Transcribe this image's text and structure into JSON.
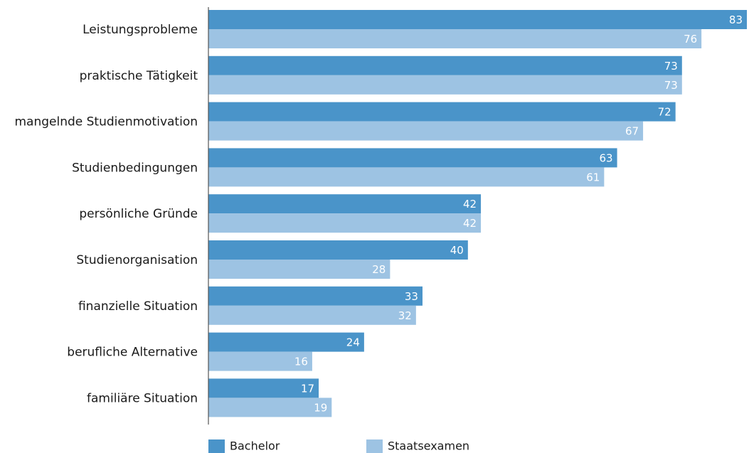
{
  "chart_data": {
    "type": "bar",
    "orientation": "horizontal",
    "title": "",
    "xlabel": "",
    "ylabel": "",
    "xlim": [
      0,
      83
    ],
    "grid": false,
    "legend_position": "bottom-left",
    "categories": [
      "Leistungsprobleme",
      "praktische Tätigkeit",
      "mangelnde Studienmotivation",
      "Studienbedingungen",
      "persönliche Gründe",
      "Studienorganisation",
      "finanzielle Situation",
      "berufliche Alternative",
      "familiäre Situation"
    ],
    "series": [
      {
        "name": "Bachelor",
        "color": "#4a94c9",
        "values": [
          83,
          73,
          72,
          63,
          42,
          40,
          33,
          24,
          17
        ]
      },
      {
        "name": "Staatsexamen",
        "color": "#9dc3e3",
        "values": [
          76,
          73,
          67,
          61,
          42,
          28,
          32,
          16,
          19
        ]
      }
    ]
  }
}
